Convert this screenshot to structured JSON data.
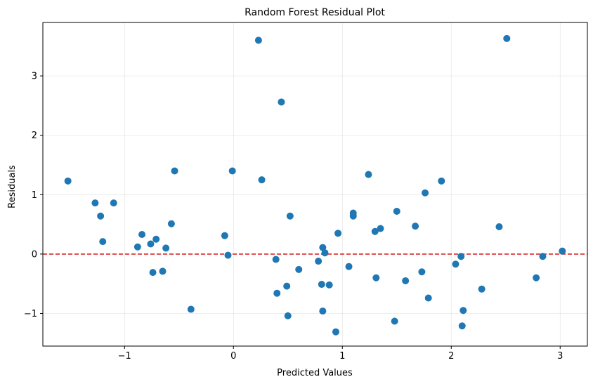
{
  "chart_data": {
    "type": "scatter",
    "title": "Random Forest Residual Plot",
    "xlabel": "Predicted Values",
    "ylabel": "Residuals",
    "xlim": [
      -1.75,
      3.25
    ],
    "ylim": [
      -1.55,
      3.9
    ],
    "xticks": [
      -1,
      0,
      1,
      2,
      3
    ],
    "yticks": [
      -1,
      0,
      1,
      2,
      3
    ],
    "xtick_labels": [
      "−1",
      "0",
      "1",
      "2",
      "3"
    ],
    "ytick_labels": [
      "−1",
      "0",
      "1",
      "2",
      "3"
    ],
    "grid": true,
    "reference_line": {
      "y": 0,
      "color": "#d62728",
      "style": "dashed"
    },
    "marker_color": "#1f77b4",
    "points": [
      {
        "x": -1.52,
        "y": 1.23
      },
      {
        "x": -1.27,
        "y": 0.86
      },
      {
        "x": -1.22,
        "y": 0.64
      },
      {
        "x": -1.2,
        "y": 0.21
      },
      {
        "x": -1.1,
        "y": 0.86
      },
      {
        "x": -0.88,
        "y": 0.12
      },
      {
        "x": -0.84,
        "y": 0.33
      },
      {
        "x": -0.76,
        "y": 0.17
      },
      {
        "x": -0.74,
        "y": -0.31
      },
      {
        "x": -0.71,
        "y": 0.25
      },
      {
        "x": -0.65,
        "y": -0.29
      },
      {
        "x": -0.62,
        "y": 0.1
      },
      {
        "x": -0.57,
        "y": 0.51
      },
      {
        "x": -0.54,
        "y": 1.4
      },
      {
        "x": -0.39,
        "y": -0.93
      },
      {
        "x": -0.08,
        "y": 0.31
      },
      {
        "x": -0.05,
        "y": -0.02
      },
      {
        "x": -0.01,
        "y": 1.4
      },
      {
        "x": 0.23,
        "y": 3.6
      },
      {
        "x": 0.26,
        "y": 1.25
      },
      {
        "x": 0.39,
        "y": -0.09
      },
      {
        "x": 0.4,
        "y": -0.66
      },
      {
        "x": 0.44,
        "y": 2.56
      },
      {
        "x": 0.49,
        "y": -0.54
      },
      {
        "x": 0.5,
        "y": -1.04
      },
      {
        "x": 0.52,
        "y": 0.64
      },
      {
        "x": 0.6,
        "y": -0.26
      },
      {
        "x": 0.78,
        "y": -0.12
      },
      {
        "x": 0.81,
        "y": -0.51
      },
      {
        "x": 0.82,
        "y": 0.11
      },
      {
        "x": 0.82,
        "y": -0.96
      },
      {
        "x": 0.84,
        "y": 0.02
      },
      {
        "x": 0.88,
        "y": -0.52
      },
      {
        "x": 0.94,
        "y": -1.31
      },
      {
        "x": 0.96,
        "y": 0.35
      },
      {
        "x": 1.06,
        "y": -0.21
      },
      {
        "x": 1.1,
        "y": 0.69
      },
      {
        "x": 1.1,
        "y": 0.64
      },
      {
        "x": 1.24,
        "y": 1.34
      },
      {
        "x": 1.3,
        "y": 0.38
      },
      {
        "x": 1.31,
        "y": -0.4
      },
      {
        "x": 1.35,
        "y": 0.43
      },
      {
        "x": 1.48,
        "y": -1.13
      },
      {
        "x": 1.5,
        "y": 0.72
      },
      {
        "x": 1.58,
        "y": -0.45
      },
      {
        "x": 1.67,
        "y": 0.47
      },
      {
        "x": 1.73,
        "y": -0.3
      },
      {
        "x": 1.76,
        "y": 1.03
      },
      {
        "x": 1.79,
        "y": -0.74
      },
      {
        "x": 1.91,
        "y": 1.23
      },
      {
        "x": 2.04,
        "y": -0.17
      },
      {
        "x": 2.09,
        "y": -0.04
      },
      {
        "x": 2.1,
        "y": -1.21
      },
      {
        "x": 2.11,
        "y": -0.95
      },
      {
        "x": 2.28,
        "y": -0.59
      },
      {
        "x": 2.44,
        "y": 0.46
      },
      {
        "x": 2.51,
        "y": 3.63
      },
      {
        "x": 2.78,
        "y": -0.4
      },
      {
        "x": 2.84,
        "y": -0.04
      },
      {
        "x": 3.02,
        "y": 0.05
      }
    ]
  }
}
